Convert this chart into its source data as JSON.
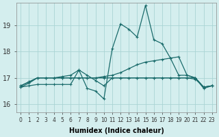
{
  "title": "",
  "xlabel": "Humidex (Indice chaleur)",
  "ylabel": "",
  "bg_color": "#d4eeee",
  "line_color": "#1a6b6b",
  "grid_color": "#aad4d4",
  "xlim": [
    -0.5,
    23.5
  ],
  "ylim": [
    15.7,
    19.85
  ],
  "yticks": [
    16,
    17,
    18,
    19
  ],
  "xticks": [
    0,
    1,
    2,
    3,
    4,
    5,
    6,
    7,
    8,
    9,
    10,
    11,
    12,
    13,
    14,
    15,
    16,
    17,
    18,
    19,
    20,
    21,
    22,
    23
  ],
  "line1_x": [
    0,
    1,
    2,
    3,
    4,
    5,
    6,
    7,
    8,
    9,
    10,
    11,
    12,
    13,
    14,
    15,
    16,
    17,
    18,
    19,
    20,
    21,
    22,
    23
  ],
  "line1_y": [
    16.7,
    16.85,
    17.0,
    17.0,
    17.0,
    17.0,
    17.0,
    17.0,
    17.0,
    17.0,
    17.05,
    17.1,
    17.2,
    17.35,
    17.5,
    17.6,
    17.65,
    17.7,
    17.75,
    17.8,
    17.1,
    17.0,
    16.65,
    16.7
  ],
  "line2_x": [
    0,
    1,
    2,
    3,
    4,
    5,
    6,
    7,
    8,
    9,
    10,
    11,
    12,
    13,
    14,
    15,
    16,
    17,
    18,
    19,
    20,
    21,
    22,
    23
  ],
  "line2_y": [
    16.7,
    16.85,
    17.0,
    17.0,
    17.0,
    17.0,
    17.0,
    17.0,
    17.0,
    17.0,
    17.0,
    17.0,
    17.0,
    17.0,
    17.0,
    17.0,
    17.0,
    17.0,
    17.0,
    17.0,
    17.0,
    17.0,
    16.65,
    16.7
  ],
  "line3_x": [
    0,
    1,
    2,
    3,
    4,
    5,
    6,
    7,
    8,
    9,
    10,
    11,
    12,
    13,
    14,
    15,
    16,
    17,
    18,
    19,
    20,
    21,
    22,
    23
  ],
  "line3_y": [
    16.65,
    16.8,
    17.0,
    17.0,
    17.0,
    17.05,
    17.1,
    17.3,
    17.1,
    16.9,
    16.7,
    17.0,
    17.0,
    17.0,
    17.0,
    17.0,
    17.0,
    17.0,
    17.0,
    17.0,
    17.0,
    16.95,
    16.65,
    16.7
  ],
  "line4_x": [
    0,
    1,
    2,
    3,
    4,
    5,
    6,
    7,
    8,
    9,
    10,
    11,
    12,
    13,
    14,
    15,
    16,
    17,
    18,
    19,
    20,
    21,
    22,
    23
  ],
  "line4_y": [
    16.65,
    16.7,
    16.75,
    16.75,
    16.75,
    16.75,
    16.75,
    17.3,
    16.6,
    16.5,
    16.2,
    18.1,
    19.05,
    18.85,
    18.55,
    19.75,
    18.45,
    18.3,
    17.75,
    17.1,
    17.1,
    17.0,
    16.6,
    16.7
  ],
  "marker": "+",
  "marker_size": 3,
  "linewidth": 0.9
}
